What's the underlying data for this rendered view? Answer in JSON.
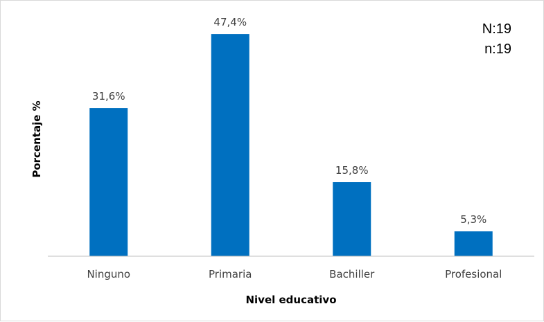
{
  "colors": {
    "bar": "#0070c0",
    "axis_line": "#bfbfbf",
    "label": "#404040"
  },
  "chart_data": {
    "type": "bar",
    "categories": [
      "Ninguno",
      "Primaria",
      "Bachiller",
      "Profesional"
    ],
    "values": [
      31.6,
      47.4,
      15.8,
      5.3
    ],
    "value_labels": [
      "31,6%",
      "47,4%",
      "15,8%",
      "5,3%"
    ],
    "xlabel": "Nivel educativo",
    "ylabel": "Porcentaje  %",
    "ylim": [
      0,
      50
    ],
    "grid": false,
    "legend": "none",
    "annotations": [
      "N:19",
      "n:19"
    ]
  }
}
